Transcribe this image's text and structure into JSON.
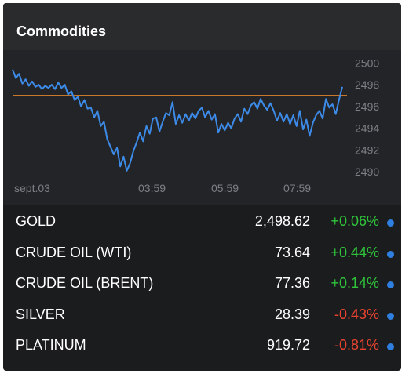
{
  "widget": {
    "title": "Commodities"
  },
  "colors": {
    "line": "#3d8be8",
    "reference": "#c7782a",
    "up": "#2fc43a",
    "down": "#e8432f",
    "dot": "#2f7fe0"
  },
  "chart_data": {
    "type": "line",
    "x_ticks": [
      "sept.03",
      "03:59",
      "05:59",
      "07:59"
    ],
    "y_ticks": [
      2500,
      2498,
      2496,
      2494,
      2492,
      2490
    ],
    "ylim": [
      2489.8,
      2500.6
    ],
    "reference_line": 2497.0,
    "grid": false,
    "series": [
      {
        "values": [
          2499.4,
          2498.6,
          2499.0,
          2498.1,
          2498.5,
          2497.9,
          2498.3,
          2497.8,
          2498.0,
          2497.6,
          2497.9,
          2497.7,
          2498.0,
          2497.6,
          2498.2,
          2497.7,
          2498.0,
          2497.1,
          2497.4,
          2496.6,
          2496.9,
          2496.0,
          2496.6,
          2495.8,
          2495.9,
          2495.0,
          2495.6,
          2494.2,
          2494.6,
          2493.0,
          2492.3,
          2491.6,
          2492.2,
          2490.5,
          2491.4,
          2490.1,
          2490.8,
          2491.9,
          2492.7,
          2493.6,
          2492.8,
          2494.2,
          2493.5,
          2494.9,
          2495.0,
          2493.7,
          2494.6,
          2495.4,
          2495.2,
          2496.4,
          2494.4,
          2495.2,
          2494.5,
          2495.3,
          2494.7,
          2495.4,
          2494.9,
          2495.6,
          2495.9,
          2495.0,
          2495.6,
          2494.8,
          2495.3,
          2493.6,
          2494.4,
          2493.8,
          2494.5,
          2494.0,
          2494.9,
          2495.3,
          2494.6,
          2495.8,
          2495.3,
          2496.1,
          2496.4,
          2495.8,
          2496.7,
          2496.1,
          2495.7,
          2496.3,
          2495.6,
          2494.7,
          2495.4,
          2494.6,
          2495.3,
          2494.4,
          2495.2,
          2494.2,
          2495.6,
          2493.9,
          2494.8,
          2493.3,
          2494.5,
          2495.2,
          2495.6,
          2494.9,
          2496.7,
          2495.9,
          2496.2,
          2495.3,
          2496.6,
          2497.8
        ]
      }
    ]
  },
  "rows": [
    {
      "name": "GOLD",
      "price": "2,498.62",
      "change": "+0.06%",
      "dir": "up"
    },
    {
      "name": "CRUDE OIL (WTI)",
      "price": "73.64",
      "change": "+0.44%",
      "dir": "up"
    },
    {
      "name": "CRUDE OIL (BRENT)",
      "price": "77.36",
      "change": "+0.14%",
      "dir": "up"
    },
    {
      "name": "SILVER",
      "price": "28.39",
      "change": "-0.43%",
      "dir": "down"
    },
    {
      "name": "PLATINUM",
      "price": "919.72",
      "change": "-0.81%",
      "dir": "down"
    }
  ]
}
